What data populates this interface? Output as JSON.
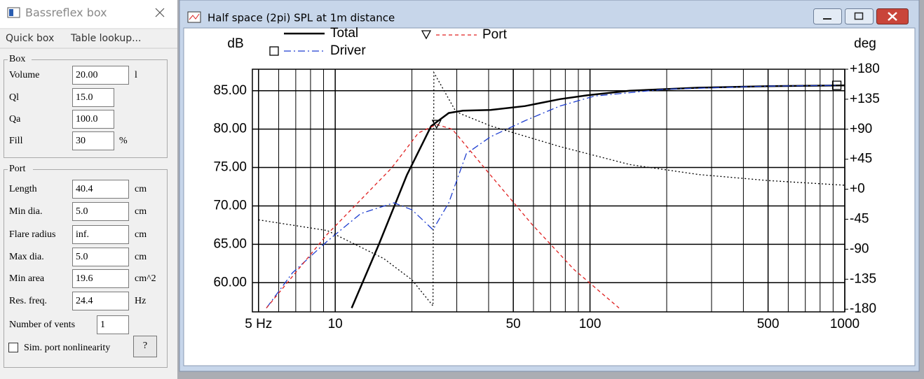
{
  "panel": {
    "title": "Bassreflex box",
    "menu": [
      "Quick box",
      "Table lookup..."
    ],
    "box": {
      "title": "Box",
      "fields": [
        {
          "label": "Volume",
          "value": "20.00",
          "unit": "l"
        },
        {
          "label": "Ql",
          "value": "15.0"
        },
        {
          "label": "Qa",
          "value": "100.0"
        },
        {
          "label": "Fill",
          "value": "30",
          "unit": "%"
        }
      ]
    },
    "port": {
      "title": "Port",
      "fields": [
        {
          "label": "Length",
          "value": "40.4",
          "unit": "cm"
        },
        {
          "label": "Min dia.",
          "value": "5.0",
          "unit": "cm"
        },
        {
          "label": "Flare radius",
          "value": "inf.",
          "unit": "cm"
        },
        {
          "label": "Max dia.",
          "value": "5.0",
          "unit": "cm"
        },
        {
          "label": "Min area",
          "value": "19.6",
          "unit": "cm^2"
        },
        {
          "label": "Res. freq.",
          "value": "24.4",
          "unit": "Hz"
        },
        {
          "label": "Number of vents",
          "value": "1"
        }
      ],
      "checkbox": "Sim. port nonlinearity",
      "button": "?"
    }
  },
  "chart_window": {
    "title": "Half space (2pi) SPL at 1m distance"
  },
  "chart_data": {
    "type": "line",
    "ylabel": "dB",
    "y2label": "deg",
    "xscale": "log",
    "grid": true,
    "xlim": [
      4.73,
      1000
    ],
    "ylim": [
      56.2,
      87.8
    ],
    "y2lim": [
      -184,
      180
    ],
    "xticks": [
      {
        "value": 5,
        "label": "5 Hz"
      },
      10,
      50,
      100,
      500,
      1000
    ],
    "xminorticks": [
      6,
      7,
      8,
      9,
      20,
      30,
      40,
      60,
      70,
      80,
      90,
      200,
      300,
      400,
      600,
      700,
      800,
      900
    ],
    "yticks": [
      {
        "value": 60,
        "label": "60.00"
      },
      {
        "value": 65,
        "label": "65.00"
      },
      {
        "value": 70,
        "label": "70.00"
      },
      {
        "value": 75,
        "label": "75.00"
      },
      {
        "value": 80,
        "label": "80.00"
      },
      {
        "value": 85,
        "label": "85.00"
      }
    ],
    "y2ticks": [
      -180,
      -135,
      -90,
      -45,
      {
        "value": 0,
        "label": "+0"
      },
      {
        "value": 45,
        "label": "+45"
      },
      {
        "value": 90,
        "label": "+90"
      },
      {
        "value": 135,
        "label": "+135"
      },
      {
        "value": 180,
        "label": "+180"
      }
    ],
    "series": [
      {
        "name": "Total",
        "color": "#000000",
        "style": "solid",
        "x": [
          11.6,
          14.8,
          19.1,
          23.8,
          27.9,
          31.7,
          40.7,
          55.6,
          76.1,
          97.6,
          143,
          267,
          500,
          1000
        ],
        "values": [
          56.7,
          64.9,
          74.0,
          80.4,
          82.1,
          82.4,
          82.5,
          83.0,
          83.9,
          84.4,
          85.0,
          85.4,
          85.6,
          85.7
        ]
      },
      {
        "name": "Driver",
        "color": "#1f3fd0",
        "style": "dashdot",
        "marker": "square",
        "x": [
          5.37,
          6.8,
          9.3,
          12.6,
          17.0,
          20.0,
          24.2,
          27.9,
          32.7,
          40.7,
          55.6,
          76.1,
          104,
          197,
          500,
          930
        ],
        "values": [
          56.7,
          61.3,
          65.4,
          69.0,
          70.4,
          69.5,
          66.9,
          70.4,
          76.8,
          79.0,
          81.1,
          83.0,
          84.3,
          85.2,
          85.6,
          85.7
        ]
      },
      {
        "name": "Port",
        "color": "#e02020",
        "style": "dashed",
        "marker": "triangle",
        "x": [
          5.37,
          9.3,
          16.6,
          21.2,
          25.0,
          28.8,
          40.7,
          59.2,
          86.6,
          130
        ],
        "values": [
          56.7,
          66.3,
          74.9,
          79.5,
          80.6,
          80.0,
          74.0,
          67.6,
          61.7,
          56.7
        ]
      },
      {
        "color": "#000000",
        "style": "dotted",
        "axis": "y2",
        "x": [
          5.0,
          9.3,
          15.5,
          20.0,
          24.2,
          24.4,
          29.8,
          40.7,
          76.1,
          143,
          267,
          500,
          1000
        ],
        "values": [
          -46,
          -62,
          -104,
          -136,
          -175,
          175,
          116,
          95,
          64,
          37,
          22,
          13,
          6
        ]
      }
    ]
  }
}
